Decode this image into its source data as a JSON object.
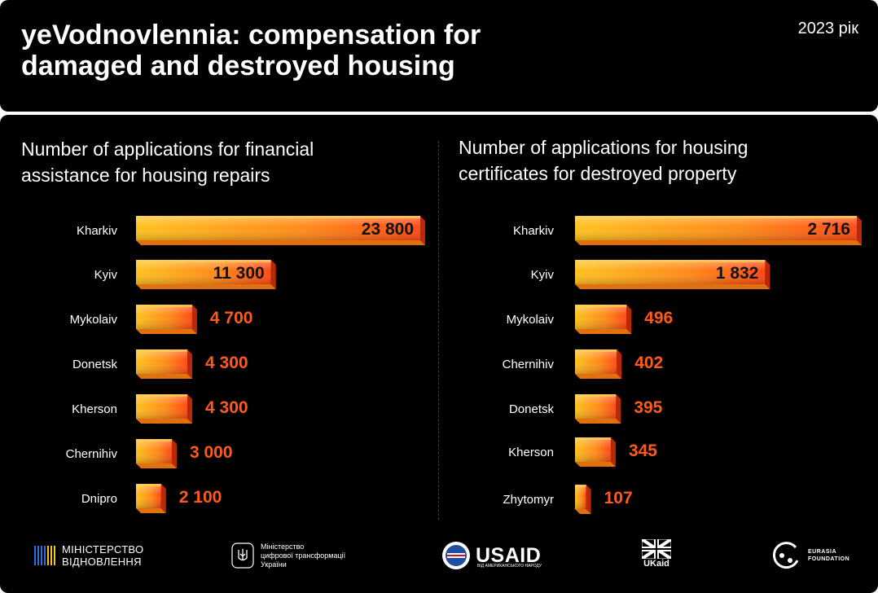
{
  "header": {
    "title": "yeVodnovlennia: compensation for damaged and destroyed housing",
    "year": "2023 рік"
  },
  "chart_data": [
    {
      "type": "bar",
      "orientation": "horizontal",
      "title": "Number of applications for financial assistance for housing repairs",
      "categories": [
        "Kharkiv",
        "Kyiv",
        "Mykolaiv",
        "Donetsk",
        "Kherson",
        "Chernihiv",
        "Dnipro"
      ],
      "values": [
        23800,
        11300,
        4700,
        4300,
        4300,
        3000,
        2100
      ],
      "value_labels": [
        "23 800",
        "11 300",
        "4 700",
        "4 300",
        "4 300",
        "3 000",
        "2 100"
      ],
      "xlim": [
        0,
        23800
      ],
      "grid": false,
      "bar_gradient": [
        "#ffbf1f",
        "#ff5a1a",
        "#e8200c"
      ]
    },
    {
      "type": "bar",
      "orientation": "horizontal",
      "title": "Number of applications for housing certificates for destroyed property",
      "categories": [
        "Kharkiv",
        "Kyiv",
        "Mykolaiv",
        "Chernihiv",
        "Donetsk",
        "Kherson",
        "Zhytomyr"
      ],
      "values": [
        2716,
        1832,
        496,
        402,
        395,
        345,
        107
      ],
      "value_labels": [
        "2 716",
        "1 832",
        "496",
        "402",
        "395",
        "345",
        "107"
      ],
      "xlim": [
        0,
        2716
      ],
      "grid": false,
      "bar_gradient": [
        "#ffbf1f",
        "#ff5a1a",
        "#e8200c"
      ]
    }
  ],
  "footer": {
    "ministry_restoration": [
      "МІНІСТЕРСТВО",
      "ВІДНОВЛЕННЯ"
    ],
    "ministry_digital": [
      "Міністерство",
      "цифрової трансформації",
      "України"
    ],
    "usaid": "USAID",
    "usaid_sub": "ВІД АМЕРИКАНСЬКОГО НАРОДУ",
    "ukaid": "UKaid",
    "eurasia": [
      "EURASIA",
      "FOUNDATION"
    ]
  },
  "colors": {
    "background": "#000000",
    "text": "#ffffff",
    "value_outside": "#ff5a1a",
    "value_inside": "#111111"
  }
}
